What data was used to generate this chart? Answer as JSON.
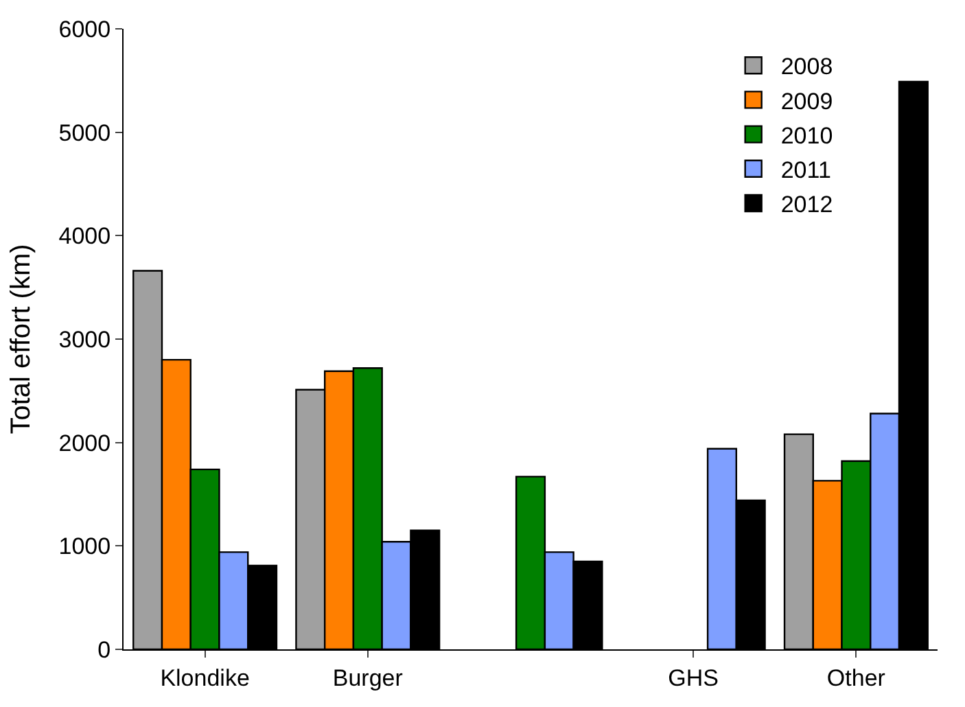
{
  "chart_data": {
    "type": "bar",
    "ylabel": "Total effort (km)",
    "categories": [
      "Klondike",
      "Burger",
      null,
      "GHS",
      "Other"
    ],
    "series": [
      {
        "name": "2008",
        "color": "#a0a0a0",
        "values": [
          3660,
          2510,
          null,
          null,
          2080
        ]
      },
      {
        "name": "2009",
        "color": "#ff7f00",
        "values": [
          2800,
          2690,
          null,
          null,
          1630
        ]
      },
      {
        "name": "2010",
        "color": "#008000",
        "values": [
          1740,
          2720,
          1670,
          null,
          1820
        ]
      },
      {
        "name": "2011",
        "color": "#7f9fff",
        "values": [
          940,
          1040,
          940,
          1940,
          2280
        ]
      },
      {
        "name": "2012",
        "color": "#000000",
        "values": [
          810,
          1150,
          850,
          1440,
          5490
        ]
      }
    ],
    "ylim": [
      0,
      6000
    ],
    "yticks": [
      0,
      1000,
      2000,
      3000,
      4000,
      5000,
      6000
    ],
    "legend": "top right"
  }
}
